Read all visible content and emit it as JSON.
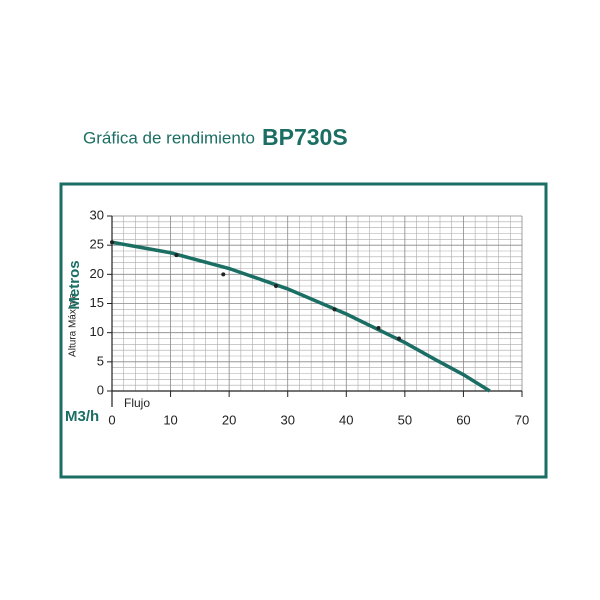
{
  "chart_data": {
    "type": "line",
    "title": "Gráfica de rendimiento",
    "model": "BP730S",
    "y_label": "Altura Máxima",
    "y_unit": "Metros",
    "x_unit": "M3/h",
    "x_label": "Flujo",
    "xlim": [
      0,
      70
    ],
    "xticks": [
      0,
      10,
      20,
      30,
      40,
      50,
      60,
      70
    ],
    "ylim": [
      0,
      30
    ],
    "yticks": [
      0,
      5,
      10,
      15,
      20,
      25,
      30
    ],
    "grid": true,
    "series": [
      {
        "color": "#1b6e63",
        "marker": false,
        "x": [
          0,
          10,
          20,
          30,
          40,
          50,
          55,
          60,
          64.5
        ],
        "values": [
          25.5,
          23.7,
          21,
          17.5,
          13.2,
          8.3,
          5.5,
          2.8,
          0
        ]
      },
      {
        "color": "#222222",
        "marker": true,
        "x": [
          0,
          11,
          19,
          28,
          38,
          45.5,
          49
        ],
        "values": [
          25.5,
          23.3,
          20,
          18,
          14,
          10.8,
          9
        ]
      }
    ]
  }
}
